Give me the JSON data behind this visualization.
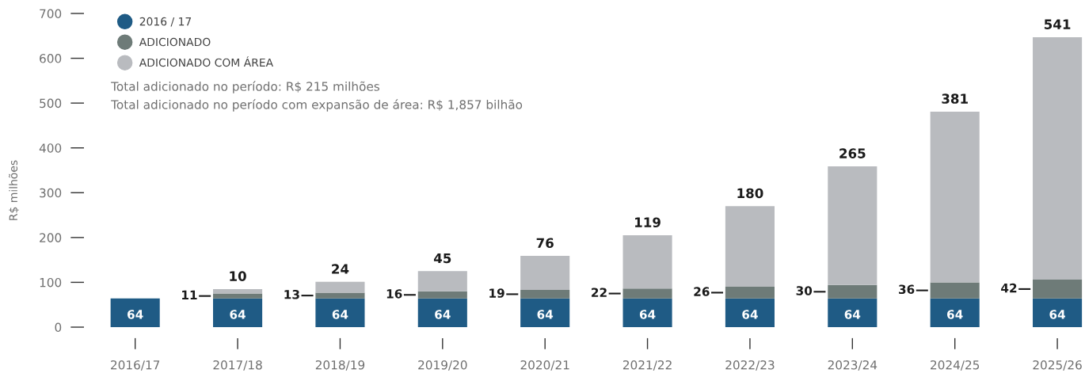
{
  "chart_data": {
    "type": "bar",
    "stacked": true,
    "ylabel": "R$ milhões",
    "categories": [
      "2016/17",
      "2017/18",
      "2018/19",
      "2019/20",
      "2020/21",
      "2021/22",
      "2022/23",
      "2023/24",
      "2024/25",
      "2025/26"
    ],
    "series": [
      {
        "name": "2016 / 17",
        "color": "#1f5b85",
        "values": [
          64,
          64,
          64,
          64,
          64,
          64,
          64,
          64,
          64,
          64
        ]
      },
      {
        "name": "ADICIONADO",
        "color": "#6e7b78",
        "values": [
          null,
          11,
          13,
          16,
          19,
          22,
          26,
          30,
          36,
          42
        ]
      },
      {
        "name": "ADICIONADO COM ÁREA",
        "color": "#b9bbbf",
        "values": [
          null,
          10,
          24,
          45,
          76,
          119,
          180,
          265,
          381,
          541
        ]
      }
    ],
    "ylim": [
      0,
      700
    ],
    "yticks": [
      0,
      100,
      200,
      300,
      400,
      500,
      600,
      700
    ],
    "data_labels": true,
    "legend": "top left",
    "grid": false,
    "annotations": [
      "Total adicionado no período: R$ 215 milhões",
      "Total adicionado no período com expansão de área: R$ 1,857 bilhão"
    ]
  }
}
